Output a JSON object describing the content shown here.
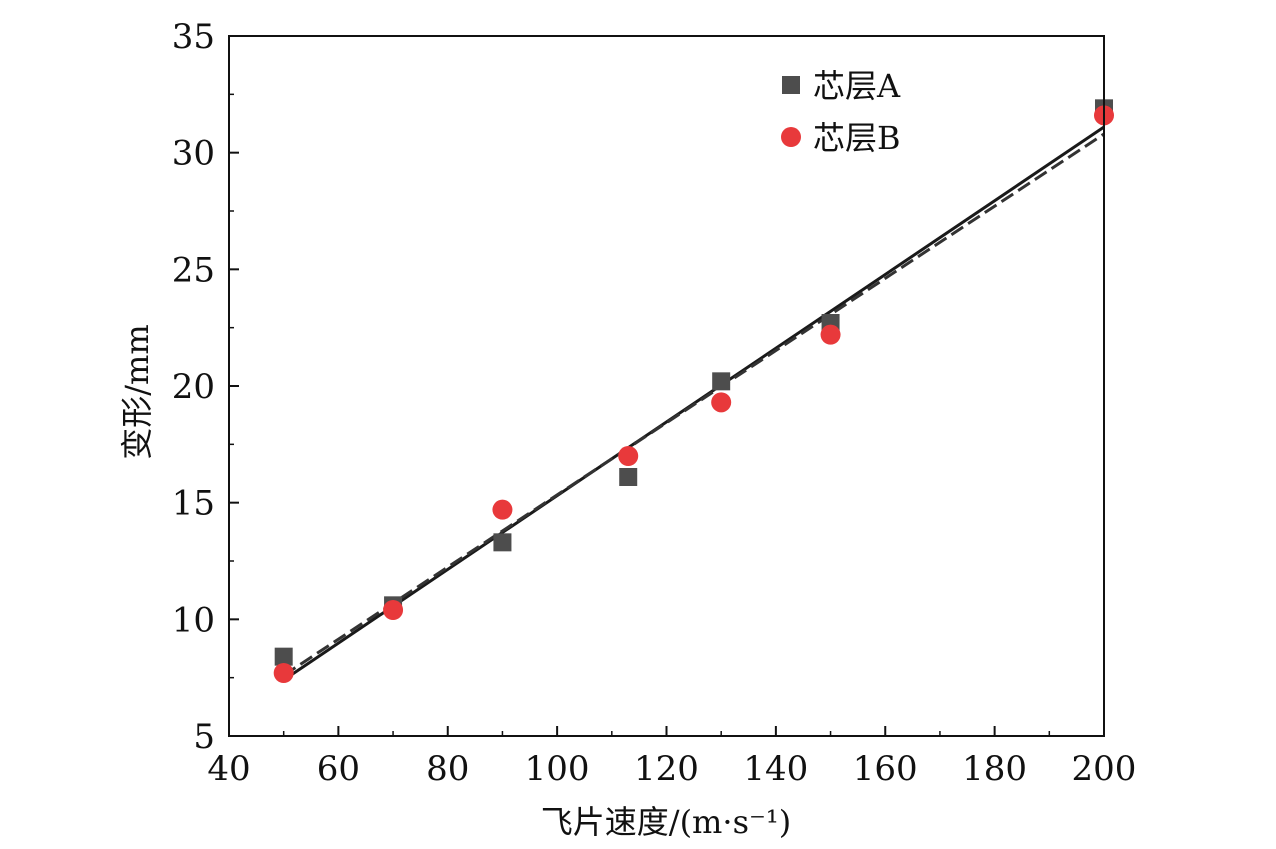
{
  "chart_data": {
    "type": "scatter",
    "xlabel": "飞片速度/(m·s⁻¹)",
    "ylabel": "变形/mm",
    "xlim": [
      40,
      200
    ],
    "ylim": [
      5,
      35
    ],
    "xticks": [
      "40",
      "60",
      "80",
      "100",
      "120",
      "140",
      "160",
      "180",
      "200"
    ],
    "yticks": [
      "5",
      "10",
      "15",
      "20",
      "25",
      "30",
      "35"
    ],
    "grid": false,
    "legend_position": "top-right",
    "series": [
      {
        "name": "芯层A",
        "marker": "square",
        "color": "#4d4d4d",
        "points": [
          [
            50,
            8.4
          ],
          [
            70,
            10.6
          ],
          [
            90,
            13.3
          ],
          [
            113,
            16.1
          ],
          [
            130,
            20.2
          ],
          [
            150,
            22.7
          ],
          [
            200,
            31.9
          ]
        ],
        "fit_line": {
          "style": "solid",
          "color": "#1a1a1a",
          "from": [
            50,
            7.4
          ],
          "to": [
            200,
            31.1
          ]
        }
      },
      {
        "name": "芯层B",
        "marker": "circle",
        "color": "#e8393b",
        "points": [
          [
            50,
            7.7
          ],
          [
            70,
            10.4
          ],
          [
            90,
            14.7
          ],
          [
            113,
            17.0
          ],
          [
            130,
            19.3
          ],
          [
            150,
            22.2
          ],
          [
            200,
            31.6
          ]
        ],
        "fit_line": {
          "style": "dashed",
          "color": "#333333",
          "from": [
            50,
            7.6
          ],
          "to": [
            200,
            30.8
          ]
        }
      }
    ]
  }
}
